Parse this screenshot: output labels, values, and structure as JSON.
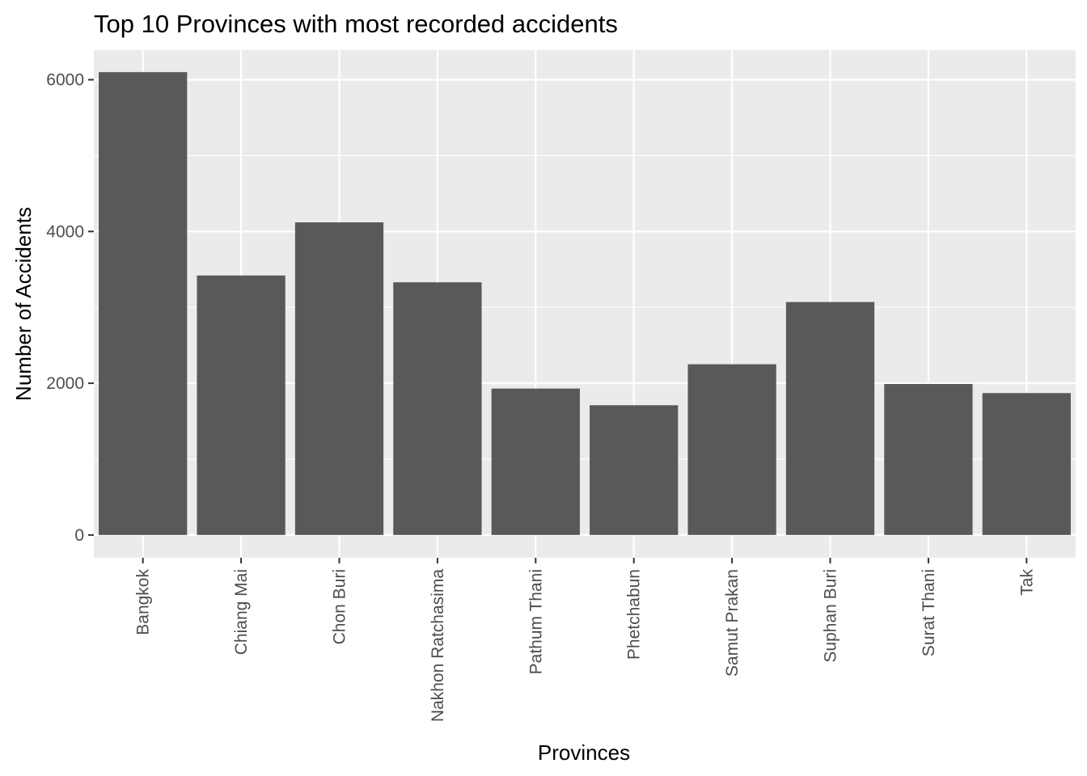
{
  "chart_data": {
    "type": "bar",
    "title": "Top 10 Provinces with most recorded accidents",
    "xlabel": "Provinces",
    "ylabel": "Number of Accidents",
    "categories": [
      "Bangkok",
      "Chiang Mai",
      "Chon Buri",
      "Nakhon Ratchasima",
      "Pathum Thani",
      "Phetchabun",
      "Samut Prakan",
      "Suphan Buri",
      "Surat Thani",
      "Tak"
    ],
    "values": [
      6100,
      3420,
      4120,
      3330,
      1930,
      1710,
      2250,
      3070,
      1990,
      1870
    ],
    "ylim": [
      -300,
      6390
    ],
    "yticks": [
      0,
      2000,
      4000,
      6000
    ],
    "grid": true,
    "colors": {
      "bar": "#595959",
      "panel": "#ebebeb",
      "grid_major": "#ffffff",
      "tick": "#333333"
    }
  }
}
